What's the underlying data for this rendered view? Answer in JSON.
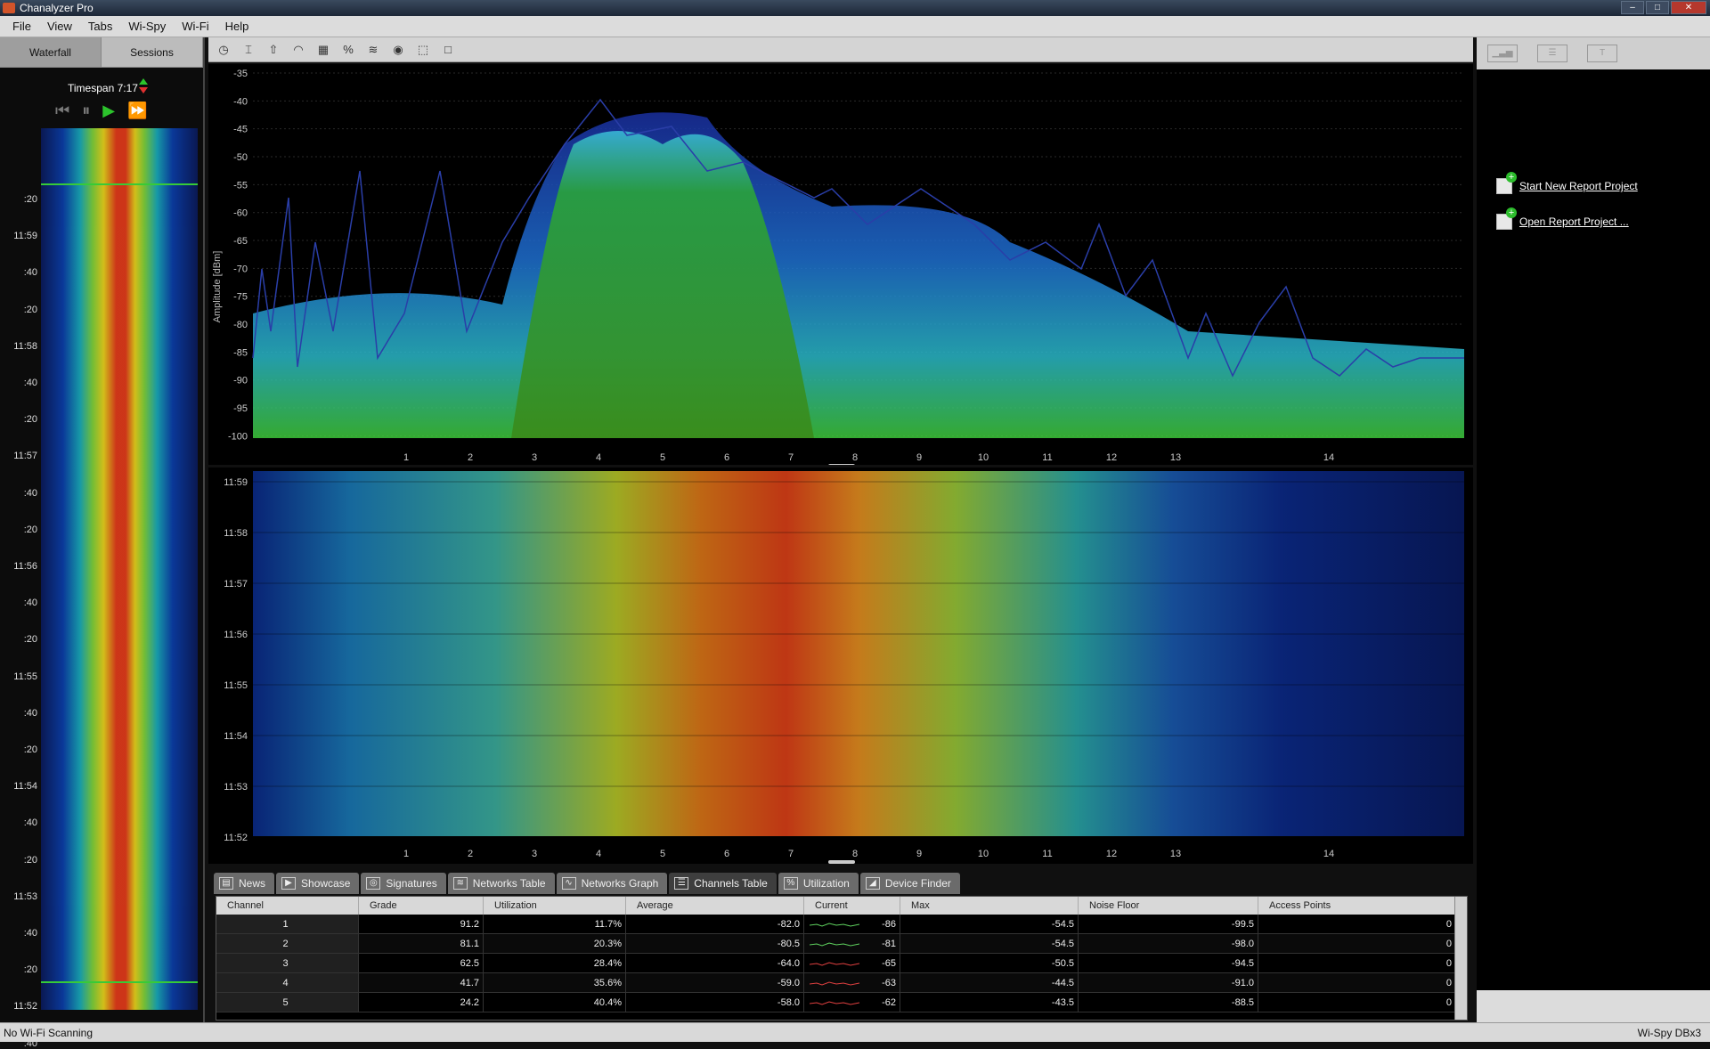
{
  "window": {
    "title": "Chanalyzer Pro"
  },
  "menu": [
    "File",
    "View",
    "Tabs",
    "Wi-Spy",
    "Wi-Fi",
    "Help"
  ],
  "left_panel": {
    "tabs": [
      "Waterfall",
      "Sessions"
    ],
    "timespan": "Timespan 7:17",
    "time_labels": [
      ":20",
      "11:59",
      ":40",
      ":20",
      "11:58",
      ":40",
      ":20",
      "11:57",
      ":40",
      ":20",
      "11:56",
      ":40",
      ":20",
      "11:55",
      ":40",
      ":20",
      "11:54",
      ":40",
      ":20",
      "11:53",
      ":40",
      ":20",
      "11:52",
      ":40"
    ]
  },
  "spectrum": {
    "ylabel": "Amplitude [dBm]",
    "y_ticks": [
      "-35",
      "-40",
      "-45",
      "-50",
      "-55",
      "-60",
      "-65",
      "-70",
      "-75",
      "-80",
      "-85",
      "-90",
      "-95",
      "-100"
    ],
    "x_ticks": [
      "1",
      "2",
      "3",
      "4",
      "5",
      "6",
      "7",
      "8",
      "9",
      "10",
      "11",
      "12",
      "13",
      "14"
    ]
  },
  "waterfall": {
    "y_ticks": [
      "11:59",
      "11:58",
      "11:57",
      "11:56",
      "11:55",
      "11:54",
      "11:53",
      "11:52"
    ],
    "x_ticks": [
      "1",
      "2",
      "3",
      "4",
      "5",
      "6",
      "7",
      "8",
      "9",
      "10",
      "11",
      "12",
      "13",
      "14"
    ]
  },
  "bottom_tabs": [
    "News",
    "Showcase",
    "Signatures",
    "Networks Table",
    "Networks Graph",
    "Channels Table",
    "Utilization",
    "Device Finder"
  ],
  "table": {
    "headers": [
      "Channel",
      "Grade",
      "Utilization",
      "Average",
      "Current",
      "Max",
      "Noise Floor",
      "Access Points"
    ],
    "rows": [
      {
        "channel": "1",
        "grade": "91.2",
        "utilization": "11.7%",
        "average": "-82.0",
        "current": "-86",
        "max": "-54.5",
        "noise_floor": "-99.5",
        "access_points": "0",
        "spark": "green"
      },
      {
        "channel": "2",
        "grade": "81.1",
        "utilization": "20.3%",
        "average": "-80.5",
        "current": "-81",
        "max": "-54.5",
        "noise_floor": "-98.0",
        "access_points": "0",
        "spark": "green"
      },
      {
        "channel": "3",
        "grade": "62.5",
        "utilization": "28.4%",
        "average": "-64.0",
        "current": "-65",
        "max": "-50.5",
        "noise_floor": "-94.5",
        "access_points": "0",
        "spark": "red"
      },
      {
        "channel": "4",
        "grade": "41.7",
        "utilization": "35.6%",
        "average": "-59.0",
        "current": "-63",
        "max": "-44.5",
        "noise_floor": "-91.0",
        "access_points": "0",
        "spark": "red"
      },
      {
        "channel": "5",
        "grade": "24.2",
        "utilization": "40.4%",
        "average": "-58.0",
        "current": "-62",
        "max": "-43.5",
        "noise_floor": "-88.5",
        "access_points": "0",
        "spark": "red"
      }
    ]
  },
  "right_panel": {
    "links": [
      "Start New Report Project",
      "Open Report Project ..."
    ]
  },
  "status": {
    "left": "No Wi-Fi Scanning",
    "right": "Wi-Spy DBx3"
  },
  "colors": {
    "accent_green": "#2cc42c",
    "spark_green": "#5fd35f",
    "spark_red": "#e04040"
  }
}
